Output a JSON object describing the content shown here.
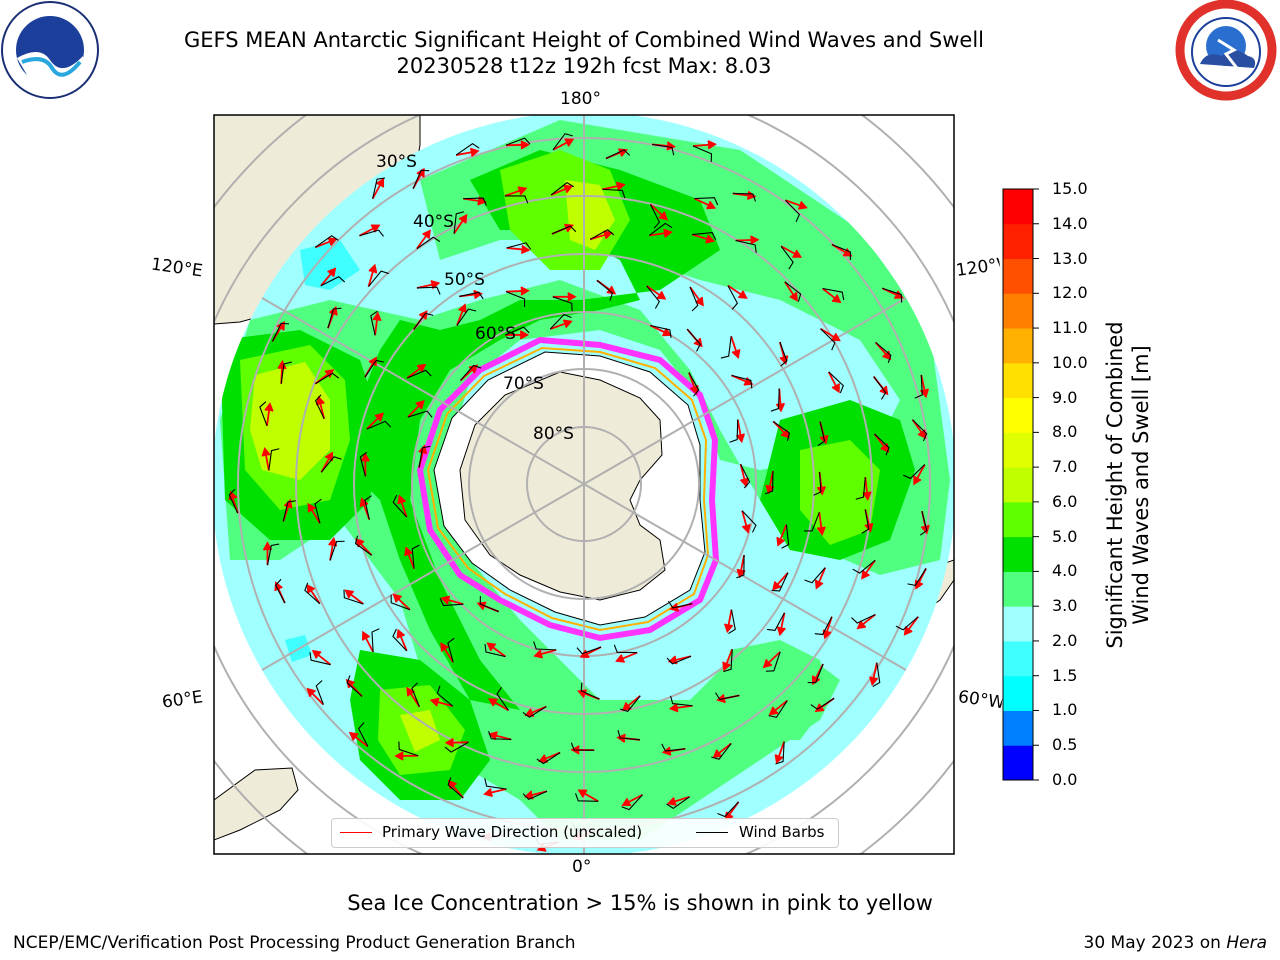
{
  "header": {
    "title_line1": "GEFS MEAN Antarctic Significant Height of Combined Wind Waves and Swell",
    "title_line2": "20230528 t12z 192h fcst   Max: 8.03"
  },
  "logos": {
    "left": {
      "name": "noaa-logo",
      "text": "NOAA"
    },
    "right": {
      "name": "nws-logo",
      "text": "NATIONAL WEATHER SERVICE"
    }
  },
  "map": {
    "longitude_labels": {
      "top": "180°",
      "bottom": "0°",
      "left_upper": "120°E",
      "left_lower": "60°E",
      "right_upper": "120°W",
      "right_lower": "60°W"
    },
    "latitude_labels": [
      "30°S",
      "40°S",
      "50°S",
      "60°S",
      "70°S",
      "80°S"
    ],
    "colors": {
      "land": "#efebd9",
      "ice_shelf": "#ffffff",
      "sea_ice": "#ff33ff",
      "grid": "#b0b0b0",
      "wave_arrow": "#ff0000",
      "wind_barb": "#000000"
    }
  },
  "legend": {
    "primary_wave": "Primary Wave Direction (unscaled)",
    "wind_barbs": "Wind Barbs"
  },
  "colorbar": {
    "label_line1": "Significant Height of Combined",
    "label_line2": "Wind Waves and Swell [m]",
    "ticks": [
      "0.0",
      "0.5",
      "1.0",
      "1.5",
      "2.0",
      "3.0",
      "4.0",
      "5.0",
      "6.0",
      "7.0",
      "8.0",
      "9.0",
      "10.0",
      "11.0",
      "12.0",
      "13.0",
      "14.0",
      "15.0"
    ],
    "colors": [
      "#0000ff",
      "#0080ff",
      "#00ffff",
      "#40ffff",
      "#a0ffff",
      "#50ff80",
      "#00e000",
      "#60ff00",
      "#c0ff00",
      "#e0ff00",
      "#ffff00",
      "#ffe000",
      "#ffb000",
      "#ff8000",
      "#ff5000",
      "#ff2000",
      "#ff0000"
    ]
  },
  "caption": "Sea Ice Concentration > 15% is shown in pink to yellow",
  "footer": {
    "left": "NCEP/EMC/Verification Post Processing Product Generation Branch",
    "right_date": "30 May 2023 on ",
    "right_machine": "Hera"
  }
}
